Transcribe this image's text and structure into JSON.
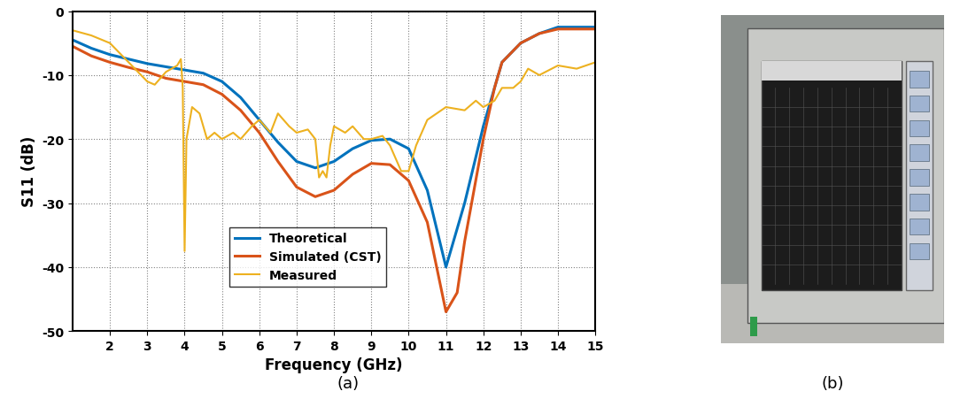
{
  "chart_data": {
    "type": "line",
    "x_label": "Frequency (GHz)",
    "y_label": "S11 (dB)",
    "xlim": [
      1,
      15
    ],
    "xticks": [
      2,
      3,
      4,
      5,
      6,
      7,
      8,
      9,
      10,
      11,
      12,
      13,
      14,
      15
    ],
    "ylim": [
      -50,
      0
    ],
    "yticks": [
      -50,
      -40,
      -30,
      -20,
      -10,
      0
    ],
    "grid": true,
    "legend": "lower center",
    "series": [
      {
        "name": "Theoretical",
        "color": "#0072BD",
        "x": [
          1,
          1.5,
          2,
          2.5,
          3,
          3.5,
          4,
          4.5,
          5,
          5.5,
          6,
          6.5,
          7,
          7.5,
          8,
          8.5,
          9,
          9.5,
          10,
          10.5,
          11,
          11.5,
          12,
          12.5,
          13,
          13.5,
          14,
          15
        ],
        "values": [
          -4.5,
          -5.8,
          -6.8,
          -7.5,
          -8.2,
          -8.7,
          -9.2,
          -9.7,
          -11,
          -13.5,
          -17,
          -20.5,
          -23.5,
          -24.5,
          -23.5,
          -21.5,
          -20.2,
          -20,
          -21.5,
          -28,
          -40,
          -30,
          -18,
          -8,
          -5,
          -3.5,
          -2.5,
          -2.5
        ]
      },
      {
        "name": "Simulated (CST)",
        "color": "#D95319",
        "x": [
          1,
          1.5,
          2,
          2.5,
          3,
          3.5,
          4,
          4.5,
          5,
          5.5,
          6,
          6.5,
          7,
          7.5,
          8,
          8.5,
          9,
          9.5,
          10,
          10.5,
          11,
          11.3,
          11.5,
          12,
          12.3,
          12.5,
          13,
          13.5,
          14,
          15
        ],
        "values": [
          -5.5,
          -7,
          -8,
          -8.8,
          -9.5,
          -10.5,
          -11,
          -11.5,
          -13,
          -15.5,
          -19,
          -23.5,
          -27.5,
          -29,
          -28,
          -25.5,
          -23.8,
          -24,
          -26.5,
          -33,
          -47,
          -44,
          -36,
          -20,
          -12,
          -8,
          -5,
          -3.5,
          -2.8,
          -2.8
        ]
      },
      {
        "name": "Measured",
        "color": "#EDB120",
        "x": [
          1,
          1.5,
          2,
          2.5,
          3,
          3.2,
          3.5,
          3.8,
          3.9,
          3.95,
          4.0,
          4.05,
          4.2,
          4.4,
          4.6,
          4.8,
          5,
          5.3,
          5.5,
          5.8,
          6,
          6.3,
          6.5,
          6.8,
          7,
          7.3,
          7.5,
          7.6,
          7.7,
          7.8,
          7.9,
          8,
          8.3,
          8.5,
          8.8,
          9,
          9.3,
          9.5,
          9.8,
          10,
          10.2,
          10.5,
          11,
          11.5,
          11.8,
          12,
          12.3,
          12.5,
          12.8,
          13,
          13.2,
          13.5,
          14,
          14.5,
          15
        ],
        "values": [
          -3,
          -3.8,
          -5,
          -8,
          -11,
          -11.5,
          -9.5,
          -8.5,
          -7.5,
          -12,
          -37.5,
          -20,
          -15,
          -16,
          -20,
          -19,
          -20,
          -19,
          -20,
          -18,
          -17,
          -19,
          -16,
          -18,
          -19,
          -18.5,
          -20,
          -26,
          -25,
          -26,
          -21,
          -18,
          -19,
          -18,
          -20,
          -20,
          -19.5,
          -21,
          -25,
          -25,
          -21,
          -17,
          -15,
          -15.5,
          -14,
          -15,
          -14,
          -12,
          -12,
          -11,
          -9,
          -10,
          -8.5,
          -9,
          -8
        ]
      }
    ]
  },
  "figure": {
    "captions": [
      "(a)",
      "(b)"
    ]
  }
}
